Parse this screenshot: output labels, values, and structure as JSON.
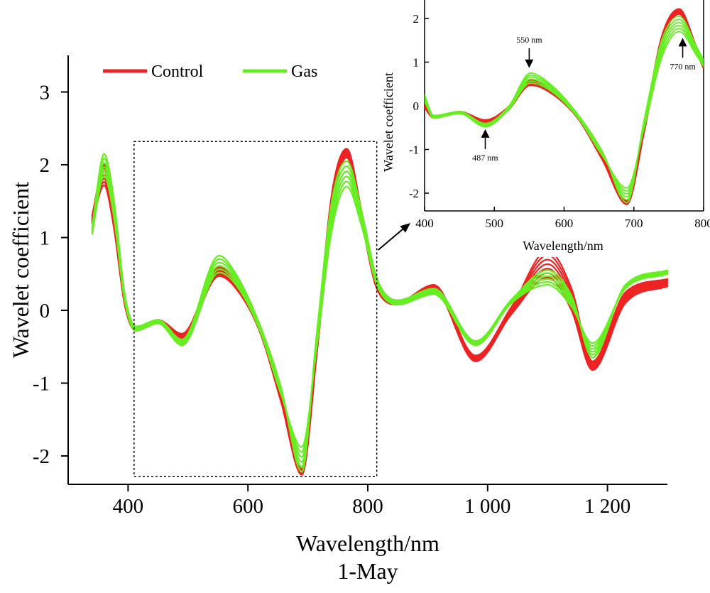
{
  "colors": {
    "control": "#ee2222",
    "gas": "#66ee22",
    "frame": "#000000"
  },
  "caption": "1-May",
  "chart_data": [
    {
      "id": "main",
      "type": "line",
      "xlabel": "Wavelength/nm",
      "ylabel": "Wavelet coefficient",
      "xlim": [
        300,
        1300
      ],
      "ylim": [
        -2.45,
        3.45
      ],
      "xticks": [
        400,
        600,
        800,
        1000,
        1200
      ],
      "xtick_labels": [
        "400",
        "600",
        "800",
        "1 000",
        "1 200"
      ],
      "yticks": [
        -2,
        -1,
        0,
        1,
        2,
        3
      ],
      "ytick_labels": [
        "-2",
        "-1",
        "0",
        "1",
        "2",
        "3"
      ],
      "legend": {
        "position": "top-left",
        "entries": [
          "Control",
          "Gas"
        ]
      },
      "highlight_box": {
        "x_range": [
          410,
          815
        ],
        "y_range": [
          -2.28,
          2.32
        ]
      },
      "series": [
        {
          "name": "Control",
          "color_key": "control",
          "count": 7,
          "x": [
            340,
            360,
            375,
            395,
            413,
            450,
            490,
            552,
            580,
            620,
            655,
            690,
            715,
            740,
            765,
            790,
            815,
            850,
            910,
            980,
            1040,
            1100,
            1140,
            1175,
            1230,
            1300
          ],
          "y_low": [
            1.2,
            1.72,
            1.2,
            0.05,
            -0.28,
            -0.17,
            -0.4,
            0.47,
            0.3,
            -0.3,
            -1.25,
            -2.26,
            -0.6,
            1.4,
            2.1,
            1.2,
            0.3,
            0.08,
            0.28,
            -0.7,
            -0.05,
            0.45,
            0.0,
            -0.82,
            0.1,
            0.33
          ],
          "y_high": [
            1.3,
            2.0,
            1.45,
            0.1,
            -0.24,
            -0.13,
            -0.32,
            0.6,
            0.4,
            -0.24,
            -1.15,
            -2.18,
            -0.4,
            1.6,
            2.22,
            1.35,
            0.4,
            0.12,
            0.35,
            -0.62,
            0.05,
            0.82,
            0.3,
            -0.7,
            0.25,
            0.43
          ]
        },
        {
          "name": "Gas",
          "color_key": "gas",
          "count": 6,
          "x": [
            340,
            360,
            375,
            395,
            413,
            450,
            490,
            552,
            580,
            620,
            655,
            690,
            715,
            740,
            765,
            790,
            815,
            850,
            910,
            980,
            1040,
            1100,
            1140,
            1175,
            1230,
            1300
          ],
          "y_low": [
            1.05,
            1.85,
            1.35,
            0.1,
            -0.28,
            -0.18,
            -0.48,
            0.52,
            0.35,
            -0.28,
            -1.15,
            -1.88,
            -0.5,
            1.1,
            1.7,
            1.15,
            0.35,
            0.08,
            0.22,
            -0.48,
            0.1,
            0.35,
            0.05,
            -0.45,
            0.3,
            0.5
          ],
          "y_high": [
            1.15,
            2.15,
            1.6,
            0.2,
            -0.22,
            -0.13,
            -0.4,
            0.75,
            0.5,
            -0.2,
            -1.05,
            -2.22,
            -0.3,
            1.5,
            2.05,
            1.35,
            0.45,
            0.14,
            0.3,
            -0.42,
            0.15,
            0.55,
            0.2,
            -0.65,
            0.35,
            0.55
          ]
        }
      ]
    },
    {
      "id": "inset",
      "type": "line",
      "xlabel": "Wavelength/nm",
      "ylabel": "Wavelet coefficient",
      "xlim": [
        400,
        800
      ],
      "ylim": [
        -2.45,
        2.25
      ],
      "xticks": [
        400,
        500,
        600,
        700,
        800
      ],
      "xtick_labels": [
        "400",
        "500",
        "600",
        "700",
        "800"
      ],
      "yticks": [
        -2,
        -1,
        0,
        1,
        2
      ],
      "ytick_labels": [
        "-2",
        "-1",
        "0",
        "1",
        "2"
      ],
      "annotations": [
        {
          "label": "487 nm",
          "x": 487,
          "y": -0.47,
          "direction": "up"
        },
        {
          "label": "550 nm",
          "x": 550,
          "y": 0.8,
          "direction": "down"
        },
        {
          "label": "770 nm",
          "x": 770,
          "y": 1.62,
          "direction": "up"
        }
      ],
      "series": [
        {
          "name": "Control",
          "color_key": "control",
          "count": 7,
          "x": [
            400,
            413,
            450,
            487,
            520,
            552,
            580,
            620,
            655,
            690,
            715,
            740,
            765,
            790,
            800
          ],
          "y_low": [
            -0.05,
            -0.28,
            -0.17,
            -0.4,
            -0.1,
            0.47,
            0.3,
            -0.3,
            -1.25,
            -2.26,
            -0.6,
            1.4,
            2.1,
            1.2,
            0.85
          ],
          "y_high": [
            0.05,
            -0.24,
            -0.13,
            -0.32,
            -0.02,
            0.6,
            0.4,
            -0.24,
            -1.15,
            -2.18,
            -0.4,
            1.6,
            2.22,
            1.35,
            1.0
          ]
        },
        {
          "name": "Gas",
          "color_key": "gas",
          "count": 6,
          "x": [
            400,
            413,
            450,
            487,
            520,
            552,
            580,
            620,
            655,
            690,
            715,
            740,
            765,
            790,
            800
          ],
          "y_low": [
            0.1,
            -0.28,
            -0.18,
            -0.48,
            -0.1,
            0.52,
            0.35,
            -0.28,
            -1.15,
            -1.88,
            -0.5,
            1.1,
            1.7,
            1.15,
            0.9
          ],
          "y_high": [
            0.25,
            -0.22,
            -0.13,
            -0.4,
            -0.02,
            0.75,
            0.5,
            -0.2,
            -1.05,
            -2.22,
            -0.3,
            1.5,
            2.05,
            1.35,
            1.05
          ]
        }
      ]
    }
  ]
}
